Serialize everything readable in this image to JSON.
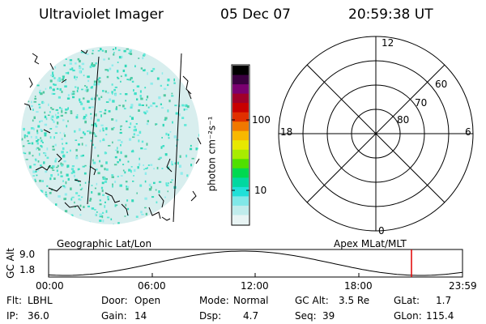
{
  "header": {
    "instrument": "Ultraviolet Imager",
    "date": "05 Dec 07",
    "time": "20:59:38 UT"
  },
  "left_panel": {
    "label": "Geographic Lat/Lon"
  },
  "colorbar": {
    "unit_label": "photon cm⁻²s⁻¹",
    "tick_labels": [
      "100",
      "10"
    ],
    "colors": [
      "#000000",
      "#3a0040",
      "#7a0070",
      "#a0002a",
      "#c80000",
      "#e03000",
      "#f07800",
      "#f8b800",
      "#e8e800",
      "#a8ec00",
      "#50e000",
      "#00d850",
      "#00d8a0",
      "#20e0d8",
      "#80e8e8",
      "#c0ecec",
      "#e8f4f4"
    ]
  },
  "polar_plot": {
    "label": "Apex MLat/MLT",
    "mlt_labels": [
      "12",
      "18",
      "6",
      "0"
    ],
    "mlat_labels": [
      "60",
      "70",
      "80"
    ]
  },
  "altitude_plot": {
    "ylabel": "GC Alt",
    "yticks": [
      "9.0",
      "1.8"
    ],
    "xticks": [
      "00:00",
      "06:00",
      "12:00",
      "18:00",
      "23:59"
    ],
    "current_marker_color": "#e00000"
  },
  "info": {
    "flt": {
      "label": "Flt:",
      "value": "LBHL"
    },
    "door": {
      "label": "Door:",
      "value": "Open"
    },
    "mode": {
      "label": "Mode:",
      "value": "Normal"
    },
    "gc_alt": {
      "label": "GC Alt:",
      "value": "3.5 Re"
    },
    "glat": {
      "label": "GLat:",
      "value": "1.7"
    },
    "ip": {
      "label": "IP:",
      "value": "36.0"
    },
    "gain": {
      "label": "Gain:",
      "value": "14"
    },
    "dsp": {
      "label": "Dsp:",
      "value": "4.7"
    },
    "seq": {
      "label": "Seq:",
      "value": "39"
    },
    "glon": {
      "label": "GLon:",
      "value": "115.4"
    }
  }
}
